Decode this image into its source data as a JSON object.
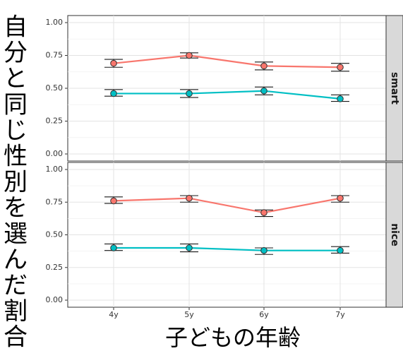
{
  "chart_data": {
    "type": "line",
    "ylabel": "自分と同じ性別を選んだ割合",
    "xlabel": "子どもの年齢",
    "categories": [
      "4y",
      "5y",
      "6y",
      "7y"
    ],
    "ylim": [
      0,
      1
    ],
    "yticks": [
      "0.00",
      "0.25",
      "0.50",
      "0.75",
      "1.00"
    ],
    "grid": true,
    "error_bars": true,
    "series_colors": [
      "#F8766D",
      "#00BFC4"
    ],
    "panels": [
      {
        "strip": "smart",
        "series": [
          {
            "values": [
              0.69,
              0.75,
              0.67,
              0.66
            ],
            "lower": [
              0.66,
              0.73,
              0.64,
              0.63
            ],
            "upper": [
              0.72,
              0.77,
              0.7,
              0.69
            ]
          },
          {
            "values": [
              0.46,
              0.46,
              0.48,
              0.42
            ],
            "lower": [
              0.44,
              0.43,
              0.45,
              0.4
            ],
            "upper": [
              0.49,
              0.49,
              0.51,
              0.45
            ]
          }
        ]
      },
      {
        "strip": "nice",
        "series": [
          {
            "values": [
              0.76,
              0.78,
              0.67,
              0.78
            ],
            "lower": [
              0.74,
              0.75,
              0.64,
              0.75
            ],
            "upper": [
              0.79,
              0.8,
              0.69,
              0.8
            ]
          },
          {
            "values": [
              0.4,
              0.4,
              0.38,
              0.38
            ],
            "lower": [
              0.38,
              0.37,
              0.35,
              0.36
            ],
            "upper": [
              0.43,
              0.43,
              0.4,
              0.41
            ]
          }
        ]
      }
    ]
  }
}
